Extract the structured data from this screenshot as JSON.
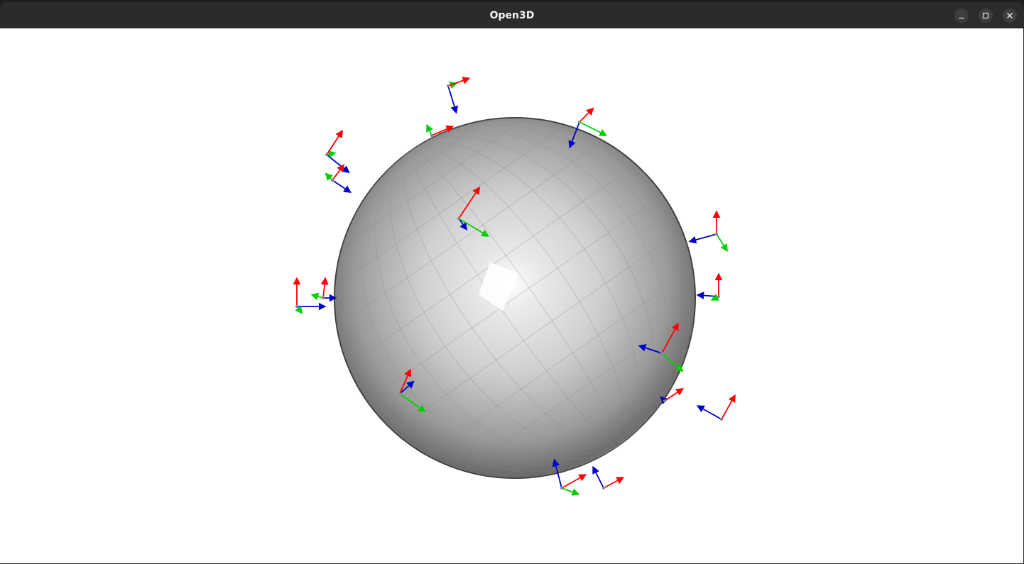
{
  "window": {
    "title": "Open3D",
    "controls": {
      "minimize": "minimize-icon",
      "maximize": "maximize-icon",
      "close": "close-icon"
    }
  },
  "scene": {
    "background": "#ffffff",
    "mesh": "sphere",
    "mesh_color": "#b5b5b5",
    "axis_colors": {
      "x": "#ff0000",
      "y": "#00d000",
      "z": "#0000cc"
    },
    "coordinate_frame_count": 17
  }
}
